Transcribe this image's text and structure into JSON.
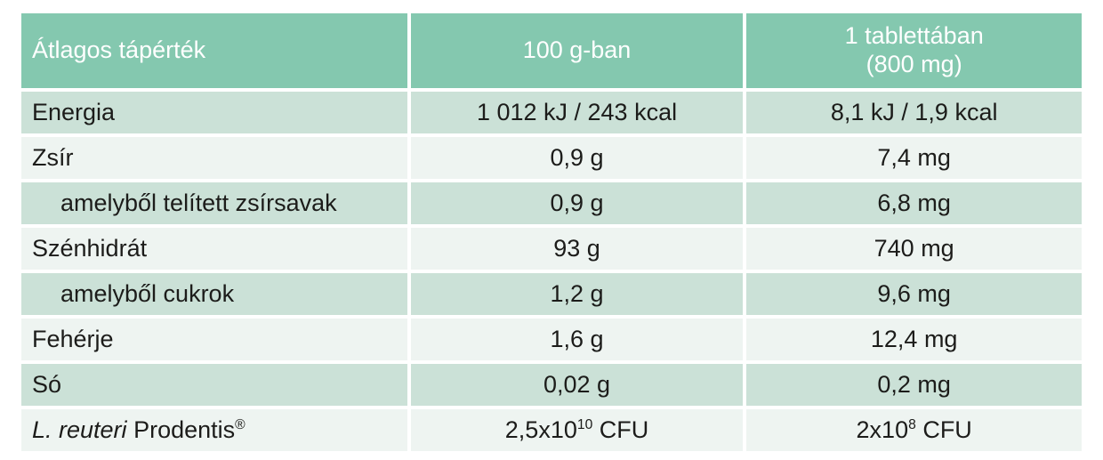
{
  "table": {
    "header": {
      "col1": "Átlagos tápérték",
      "col2": "100 g-ban",
      "col3_line1": "1 tablettában",
      "col3_line2": "(800 mg)"
    },
    "rows": [
      {
        "label": [
          {
            "t": "Energia"
          }
        ],
        "indent": false,
        "per_100g": [
          {
            "t": "1 012 kJ / 243 kcal"
          }
        ],
        "per_tablet": [
          {
            "t": "8,1 kJ / 1,9 kcal"
          }
        ]
      },
      {
        "label": [
          {
            "t": "Zsír"
          }
        ],
        "indent": false,
        "per_100g": [
          {
            "t": "0,9 g"
          }
        ],
        "per_tablet": [
          {
            "t": "7,4 mg"
          }
        ]
      },
      {
        "label": [
          {
            "t": "amelyből telített zsírsavak"
          }
        ],
        "indent": true,
        "per_100g": [
          {
            "t": "0,9 g"
          }
        ],
        "per_tablet": [
          {
            "t": "6,8 mg"
          }
        ]
      },
      {
        "label": [
          {
            "t": "Szénhidrát"
          }
        ],
        "indent": false,
        "per_100g": [
          {
            "t": "93 g"
          }
        ],
        "per_tablet": [
          {
            "t": "740 mg"
          }
        ]
      },
      {
        "label": [
          {
            "t": "amelyből cukrok"
          }
        ],
        "indent": true,
        "per_100g": [
          {
            "t": "1,2 g"
          }
        ],
        "per_tablet": [
          {
            "t": "9,6 mg"
          }
        ]
      },
      {
        "label": [
          {
            "t": "Fehérje"
          }
        ],
        "indent": false,
        "per_100g": [
          {
            "t": "1,6 g"
          }
        ],
        "per_tablet": [
          {
            "t": "12,4 mg"
          }
        ]
      },
      {
        "label": [
          {
            "t": "Só"
          }
        ],
        "indent": false,
        "per_100g": [
          {
            "t": "0,02 g"
          }
        ],
        "per_tablet": [
          {
            "t": "0,2 mg"
          }
        ]
      },
      {
        "label": [
          {
            "t": "L. reuteri",
            "italic": true
          },
          {
            "t": " Prodentis"
          },
          {
            "t": "®",
            "sup": true
          }
        ],
        "indent": false,
        "per_100g": [
          {
            "t": "2,5x10"
          },
          {
            "t": "10",
            "sup": true
          },
          {
            "t": " CFU"
          }
        ],
        "per_tablet": [
          {
            "t": "2x10"
          },
          {
            "t": "8",
            "sup": true
          },
          {
            "t": " CFU"
          }
        ]
      }
    ]
  },
  "colors": {
    "header_bg": "#84c8af",
    "row_green_bg": "#cbe1d7",
    "row_light_bg": "#eef4f1",
    "header_text": "#ffffff",
    "body_text": "#1c1c1a",
    "page_bg": "#ffffff"
  }
}
